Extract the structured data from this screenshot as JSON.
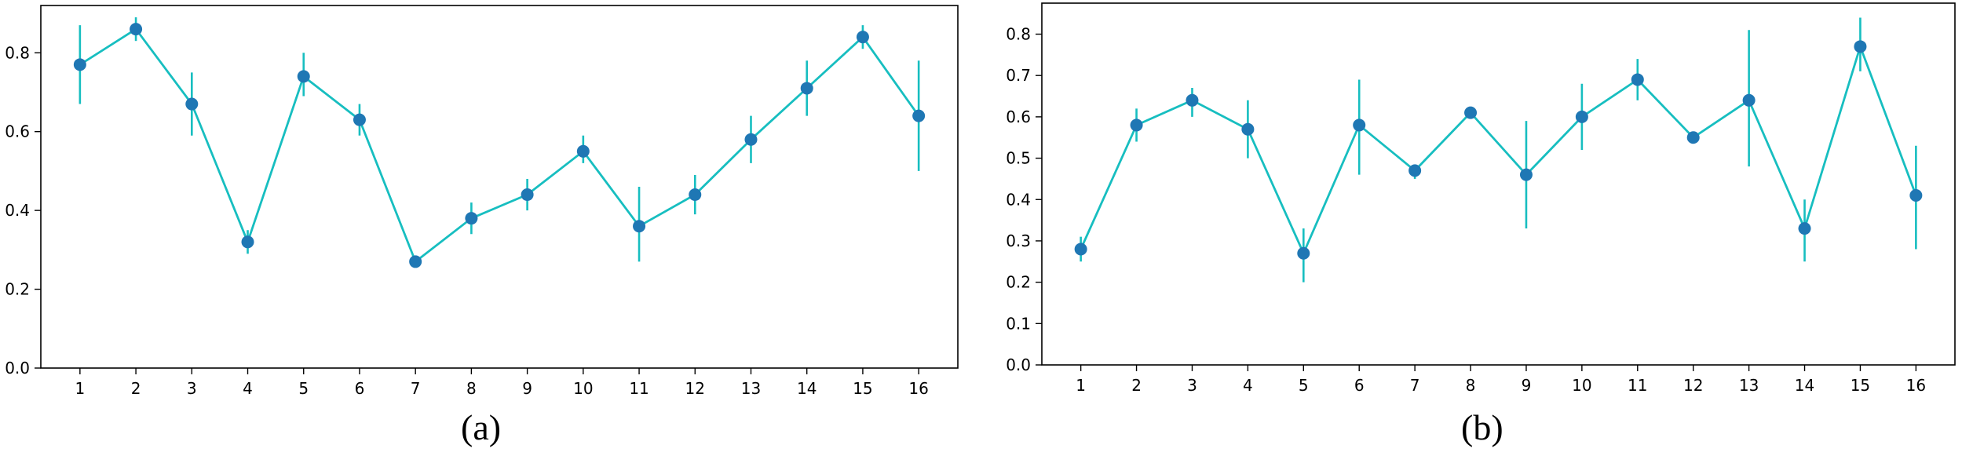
{
  "chart_data": [
    {
      "type": "line",
      "caption": "(a)",
      "x": [
        1,
        2,
        3,
        4,
        5,
        6,
        7,
        8,
        9,
        10,
        11,
        12,
        13,
        14,
        15,
        16
      ],
      "x_tick_labels": [
        "1",
        "2",
        "3",
        "4",
        "5",
        "6",
        "7",
        "8",
        "9",
        "10",
        "11",
        "12",
        "13",
        "14",
        "15",
        "16"
      ],
      "y_tick_values": [
        0.0,
        0.2,
        0.4,
        0.6,
        0.8
      ],
      "y_tick_labels": [
        "0.0",
        "0.2",
        "0.4",
        "0.6",
        "0.8"
      ],
      "ylim": [
        0.0,
        0.92
      ],
      "series": [
        {
          "values": [
            0.77,
            0.86,
            0.67,
            0.32,
            0.74,
            0.63,
            0.27,
            0.38,
            0.44,
            0.55,
            0.36,
            0.44,
            0.58,
            0.71,
            0.84,
            0.64
          ],
          "err_low": [
            0.67,
            0.83,
            0.59,
            0.29,
            0.69,
            0.59,
            0.26,
            0.34,
            0.4,
            0.52,
            0.27,
            0.39,
            0.52,
            0.64,
            0.81,
            0.5
          ],
          "err_high": [
            0.87,
            0.89,
            0.75,
            0.35,
            0.8,
            0.67,
            0.28,
            0.42,
            0.48,
            0.59,
            0.46,
            0.49,
            0.64,
            0.78,
            0.87,
            0.78
          ]
        }
      ],
      "grid": false,
      "legend": "none",
      "colors": {
        "line": "#17bec0",
        "marker": "#1f77b4",
        "errorbar": "#17bec0"
      }
    },
    {
      "type": "line",
      "caption": "(b)",
      "x": [
        1,
        2,
        3,
        4,
        5,
        6,
        7,
        8,
        9,
        10,
        11,
        12,
        13,
        14,
        15,
        16
      ],
      "x_tick_labels": [
        "1",
        "2",
        "3",
        "4",
        "5",
        "6",
        "7",
        "8",
        "9",
        "10",
        "11",
        "12",
        "13",
        "14",
        "15",
        "16"
      ],
      "y_tick_values": [
        0.0,
        0.1,
        0.2,
        0.3,
        0.4,
        0.5,
        0.6,
        0.7,
        0.8
      ],
      "y_tick_labels": [
        "0.0",
        "0.1",
        "0.2",
        "0.3",
        "0.4",
        "0.5",
        "0.6",
        "0.7",
        "0.8"
      ],
      "ylim": [
        0.0,
        0.875
      ],
      "series": [
        {
          "values": [
            0.28,
            0.58,
            0.64,
            0.57,
            0.27,
            0.58,
            0.47,
            0.61,
            0.46,
            0.6,
            0.69,
            0.55,
            0.64,
            0.33,
            0.77,
            0.41
          ],
          "err_low": [
            0.25,
            0.54,
            0.6,
            0.5,
            0.2,
            0.46,
            0.45,
            0.6,
            0.33,
            0.52,
            0.64,
            0.54,
            0.48,
            0.25,
            0.71,
            0.28
          ],
          "err_high": [
            0.31,
            0.62,
            0.67,
            0.64,
            0.33,
            0.69,
            0.48,
            0.62,
            0.59,
            0.68,
            0.74,
            0.56,
            0.81,
            0.4,
            0.84,
            0.53
          ]
        }
      ],
      "grid": false,
      "legend": "none",
      "colors": {
        "line": "#17bec0",
        "marker": "#1f77b4",
        "errorbar": "#17bec0"
      }
    }
  ]
}
